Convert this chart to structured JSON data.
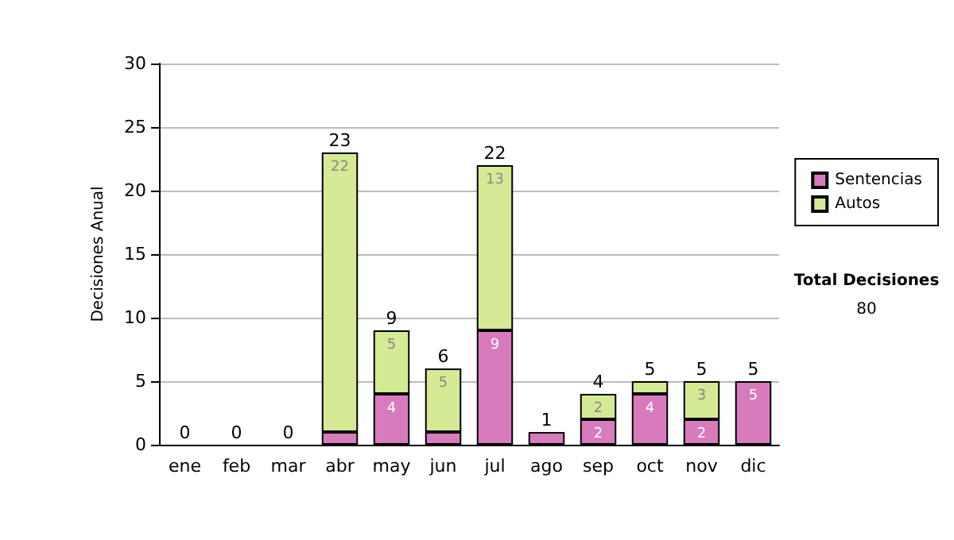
{
  "chart_data": {
    "type": "bar",
    "stacked": true,
    "ylabel": "Decisiones Anual",
    "categories": [
      "ene",
      "feb",
      "mar",
      "abr",
      "may",
      "jun",
      "jul",
      "ago",
      "sep",
      "oct",
      "nov",
      "dic"
    ],
    "series": [
      {
        "name": "Sentencias",
        "color": "#d77bbd",
        "values": [
          0,
          0,
          0,
          1,
          4,
          1,
          9,
          1,
          2,
          4,
          2,
          5
        ],
        "value_labels": [
          null,
          null,
          null,
          null,
          "4",
          null,
          "9",
          null,
          "2",
          "4",
          "2",
          "5"
        ]
      },
      {
        "name": "Autos",
        "color": "#d5ea95",
        "values": [
          0,
          0,
          0,
          22,
          5,
          5,
          13,
          0,
          2,
          1,
          3,
          0
        ],
        "value_labels": [
          null,
          null,
          null,
          "22",
          "5",
          "5",
          "13",
          null,
          "2",
          null,
          "3",
          null
        ]
      }
    ],
    "totals": [
      "0",
      "0",
      "0",
      "23",
      "9",
      "6",
      "22",
      "1",
      "4",
      "5",
      "5",
      "5"
    ],
    "ylim": [
      0,
      30
    ],
    "yticks": [
      0,
      5,
      10,
      15,
      20,
      25,
      30
    ],
    "grid": "y",
    "legend": "right",
    "annotations": [
      "Total Decisiones",
      "80"
    ]
  }
}
